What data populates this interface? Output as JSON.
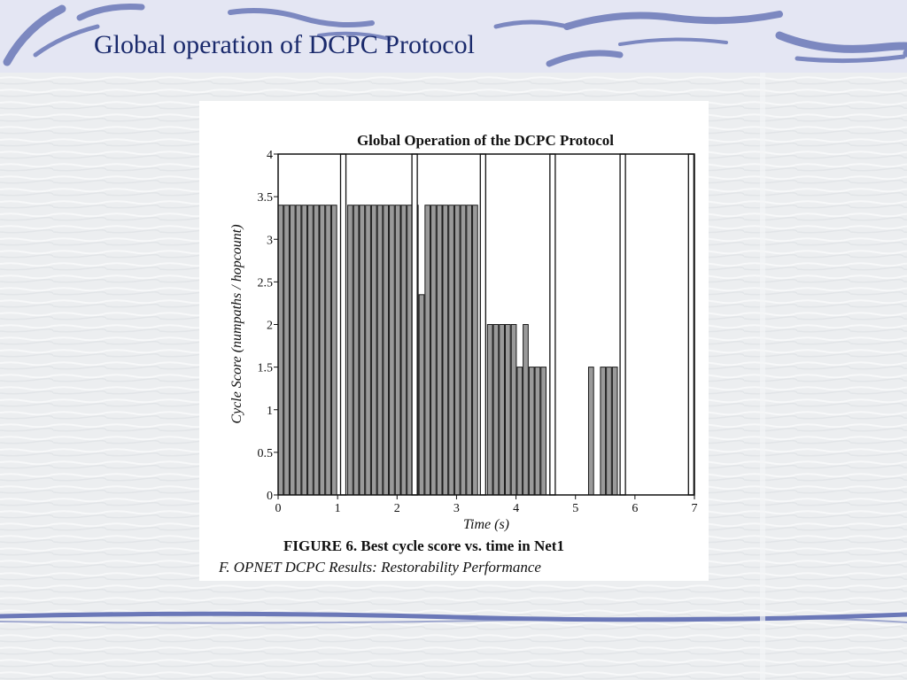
{
  "slide": {
    "title": "Global operation of DCPC Protocol"
  },
  "colors": {
    "title": "#1a2a6c",
    "swoosh": "#6b78b8",
    "bar_fill": "#9a9a9a",
    "bar_stroke": "#1a1a1a",
    "frame": "#111111"
  },
  "figure": {
    "caption": "FIGURE 6. Best cycle score vs. time in Net1",
    "section_note": "F.  OPNET DCPC Results: Restorability Performance"
  },
  "chart_data": {
    "type": "bar",
    "title": "Global Operation of the DCPC Protocol",
    "xlabel": "Time (s)",
    "ylabel": "Cycle Score (numpaths / hopcount)",
    "xlim": [
      0,
      7
    ],
    "ylim": [
      0,
      4
    ],
    "x_ticks": [
      "0",
      "1",
      "2",
      "3",
      "4",
      "5",
      "6",
      "7"
    ],
    "y_ticks": [
      "0",
      "0.5",
      "1",
      "1.5",
      "2",
      "2.5",
      "3",
      "3.5",
      "4"
    ],
    "grid": false,
    "legend": "none",
    "bar_width": 0.085,
    "bars": [
      {
        "x": 0.0,
        "value": 3.4
      },
      {
        "x": 0.1,
        "value": 3.4
      },
      {
        "x": 0.2,
        "value": 3.4
      },
      {
        "x": 0.3,
        "value": 3.4
      },
      {
        "x": 0.4,
        "value": 3.4
      },
      {
        "x": 0.5,
        "value": 3.4
      },
      {
        "x": 0.6,
        "value": 3.4
      },
      {
        "x": 0.7,
        "value": 3.4
      },
      {
        "x": 0.8,
        "value": 3.4
      },
      {
        "x": 0.9,
        "value": 3.4
      },
      {
        "x": 1.17,
        "value": 3.4
      },
      {
        "x": 1.27,
        "value": 3.4
      },
      {
        "x": 1.37,
        "value": 3.4
      },
      {
        "x": 1.47,
        "value": 3.4
      },
      {
        "x": 1.57,
        "value": 3.4
      },
      {
        "x": 1.67,
        "value": 3.4
      },
      {
        "x": 1.77,
        "value": 3.4
      },
      {
        "x": 1.87,
        "value": 3.4
      },
      {
        "x": 1.97,
        "value": 3.4
      },
      {
        "x": 2.07,
        "value": 3.4
      },
      {
        "x": 2.17,
        "value": 3.4
      },
      {
        "x": 2.27,
        "value": 3.4
      },
      {
        "x": 2.37,
        "value": 2.35
      },
      {
        "x": 2.47,
        "value": 3.4
      },
      {
        "x": 2.57,
        "value": 3.4
      },
      {
        "x": 2.67,
        "value": 3.4
      },
      {
        "x": 2.77,
        "value": 3.4
      },
      {
        "x": 2.87,
        "value": 3.4
      },
      {
        "x": 2.97,
        "value": 3.4
      },
      {
        "x": 3.07,
        "value": 3.4
      },
      {
        "x": 3.17,
        "value": 3.4
      },
      {
        "x": 3.27,
        "value": 3.4
      },
      {
        "x": 3.52,
        "value": 2.0
      },
      {
        "x": 3.62,
        "value": 2.0
      },
      {
        "x": 3.72,
        "value": 2.0
      },
      {
        "x": 3.82,
        "value": 2.0
      },
      {
        "x": 3.92,
        "value": 2.0
      },
      {
        "x": 4.02,
        "value": 1.5
      },
      {
        "x": 4.12,
        "value": 2.0
      },
      {
        "x": 4.22,
        "value": 1.5
      },
      {
        "x": 4.32,
        "value": 1.5
      },
      {
        "x": 4.42,
        "value": 1.5
      },
      {
        "x": 5.22,
        "value": 1.5
      },
      {
        "x": 5.42,
        "value": 1.5
      },
      {
        "x": 5.52,
        "value": 1.5
      },
      {
        "x": 5.62,
        "value": 1.5
      }
    ],
    "markers": [
      {
        "x": 1.05,
        "value": 4
      },
      {
        "x": 2.25,
        "value": 4
      },
      {
        "x": 3.4,
        "value": 4
      },
      {
        "x": 4.57,
        "value": 4
      },
      {
        "x": 5.75,
        "value": 4
      },
      {
        "x": 6.9,
        "value": 4
      }
    ]
  }
}
